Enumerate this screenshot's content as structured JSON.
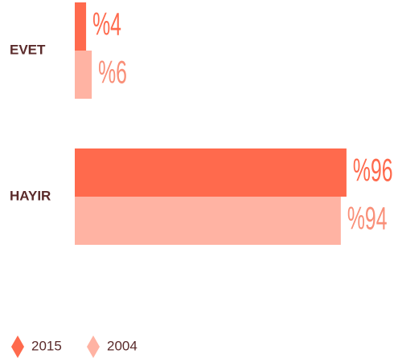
{
  "chart_data": {
    "type": "bar",
    "orientation": "horizontal",
    "categories": [
      "EVET",
      "HAYIR"
    ],
    "series": [
      {
        "name": "2015",
        "color": "#ff6a4d",
        "values": [
          4,
          96
        ],
        "value_labels": [
          "%4",
          "%96"
        ]
      },
      {
        "name": "2004",
        "color": "#ffb3a3",
        "values": [
          6,
          94
        ],
        "value_labels": [
          "%6",
          "%94"
        ]
      }
    ],
    "legend": "bottom-left"
  }
}
